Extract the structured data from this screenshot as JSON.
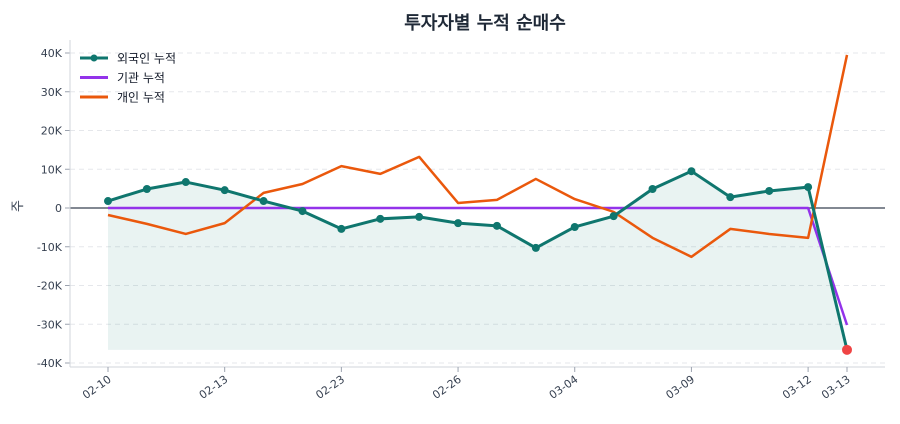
{
  "chart_data": {
    "type": "line",
    "title": "투자자별 누적 순매수",
    "ylabel": "주",
    "xlabel": "",
    "ylim": [
      -41000,
      43000
    ],
    "y_ticks": [
      -40000,
      -30000,
      -20000,
      -10000,
      0,
      10000,
      20000,
      30000,
      40000
    ],
    "y_tick_labels": [
      "-40K",
      "-30K",
      "-20K",
      "-10K",
      "0",
      "10K",
      "20K",
      "30K",
      "40K"
    ],
    "x_ticks": [
      {
        "index": 0,
        "label": "02-10"
      },
      {
        "index": 3,
        "label": "02-13"
      },
      {
        "index": 6,
        "label": "02-23"
      },
      {
        "index": 9,
        "label": "02-26"
      },
      {
        "index": 12,
        "label": "03-04"
      },
      {
        "index": 15,
        "label": "03-09"
      },
      {
        "index": 18,
        "label": "03-12"
      },
      {
        "index": 19,
        "label": "03-13"
      }
    ],
    "grid": true,
    "legend_position": "top-left",
    "series": [
      {
        "name": "외국인 누적",
        "color": "#0f766e",
        "markers": true,
        "fill_to_min": true,
        "values": [
          1800,
          4900,
          6700,
          4600,
          1800,
          -800,
          -5400,
          -2800,
          -2300,
          -3900,
          -4600,
          -10300,
          -4900,
          -2100,
          4900,
          9500,
          2800,
          4400,
          5400,
          -36600
        ]
      },
      {
        "name": "기관 누적",
        "color": "#9333ea",
        "markers": false,
        "values": [
          0,
          0,
          0,
          0,
          0,
          0,
          0,
          0,
          0,
          0,
          0,
          0,
          0,
          0,
          0,
          0,
          0,
          0,
          0,
          -30200
        ]
      },
      {
        "name": "개인 누적",
        "color": "#ea580c",
        "markers": false,
        "values": [
          -1800,
          -4100,
          -6700,
          -3900,
          3900,
          6200,
          10800,
          8800,
          13200,
          1300,
          2100,
          7500,
          2300,
          -1000,
          -7700,
          -12600,
          -5400,
          -6700,
          -7700,
          39500
        ]
      }
    ],
    "highlight_point_color": "#ef4444"
  }
}
